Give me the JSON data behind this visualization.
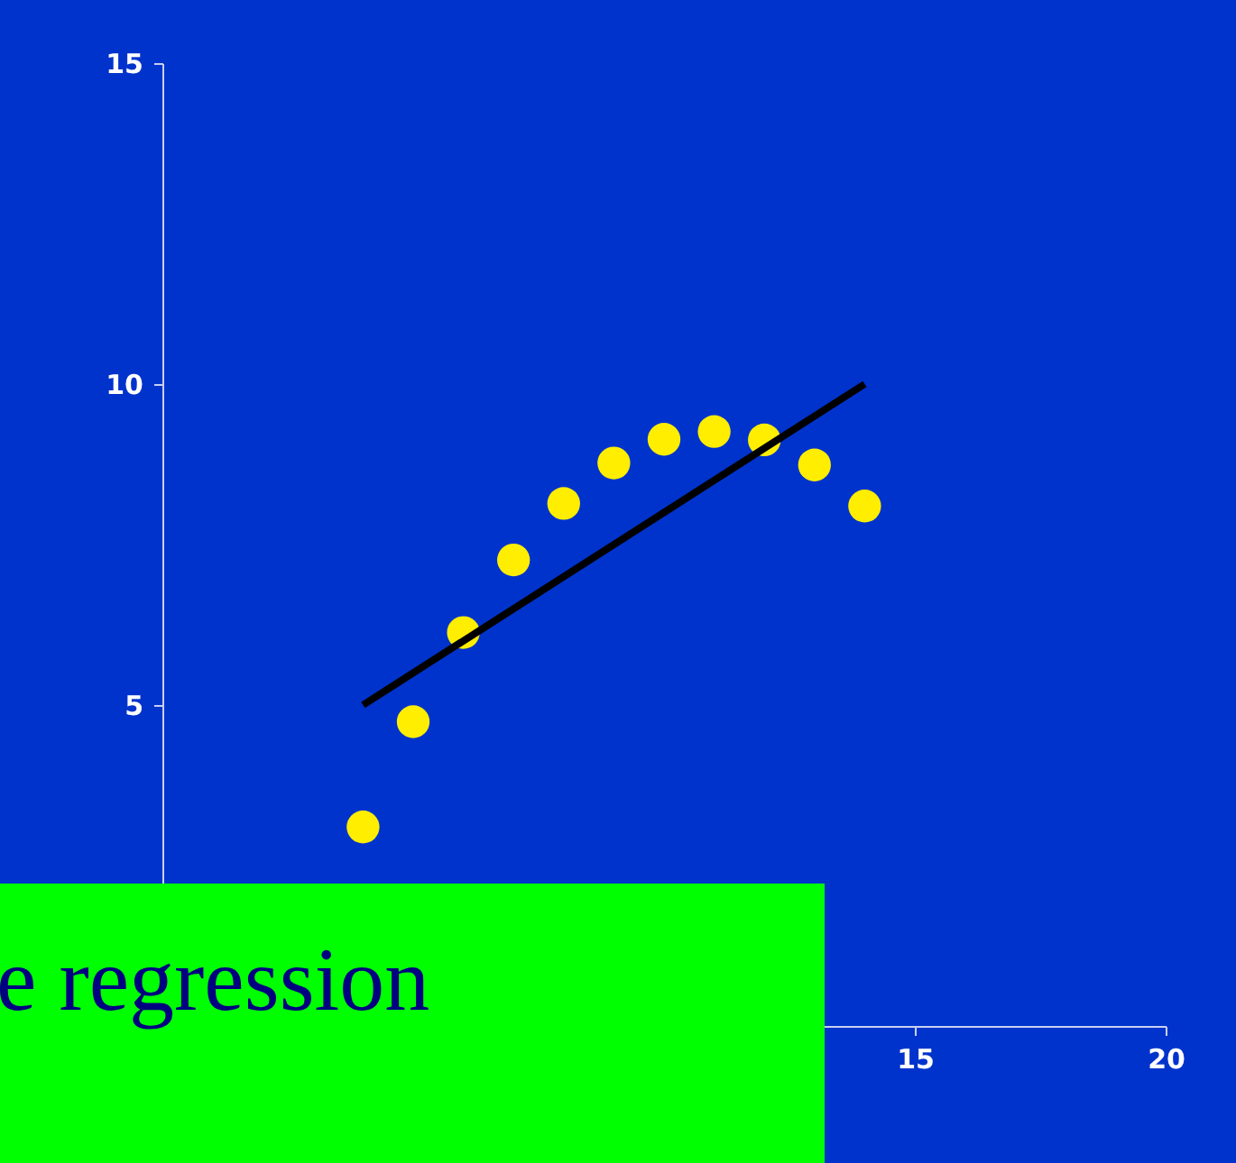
{
  "chart_data": {
    "type": "scatter",
    "xlim": [
      0,
      20
    ],
    "ylim": [
      0,
      15
    ],
    "xticks": [
      15,
      20
    ],
    "yticks": [
      5,
      10,
      15
    ],
    "grid": false,
    "annotations": [
      "e regression"
    ],
    "series": [
      {
        "color": "#ffee00",
        "marker": "circle",
        "x": [
          4,
          5,
          6,
          7,
          8,
          9,
          10,
          11,
          12,
          13,
          14
        ],
        "values": [
          3.1,
          4.74,
          6.13,
          7.26,
          8.14,
          8.77,
          9.14,
          9.26,
          9.13,
          8.74,
          8.1
        ]
      },
      {
        "type": "line",
        "color": "#000000",
        "x": [
          4,
          14
        ],
        "values": [
          5,
          10
        ]
      }
    ]
  }
}
